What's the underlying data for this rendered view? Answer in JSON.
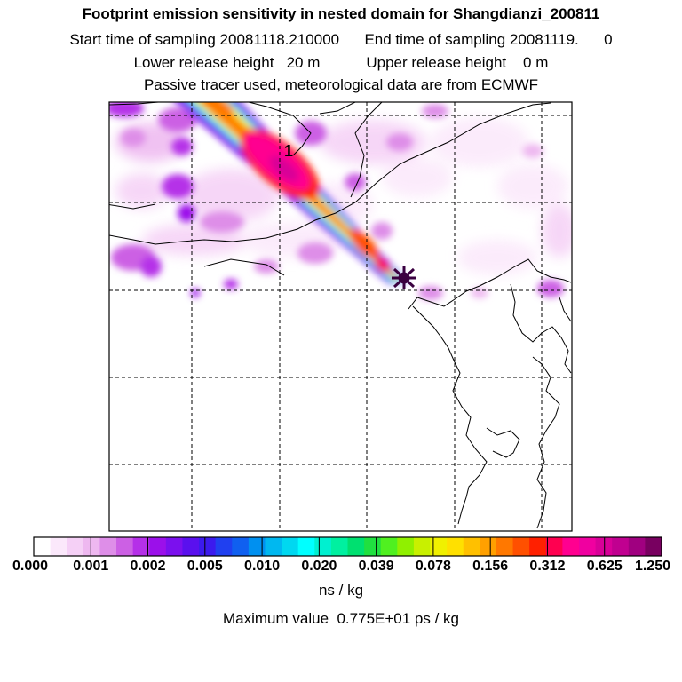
{
  "header": {
    "title": "Footprint emission sensitivity in nested domain for Shangdianzi_200811",
    "line2": "Start time of sampling 20081118.210000      End time of sampling 20081119.      0",
    "line3": "Lower release height   20 m           Upper release height    0 m",
    "line4": "Passive tracer used, meteorological data are from ECMWF"
  },
  "map": {
    "receptor_label": "1",
    "receptor_marker": "star-icon"
  },
  "colorbar": {
    "labels": [
      "0.000",
      "0.001",
      "0.002",
      "0.005",
      "0.010",
      "0.020",
      "0.039",
      "0.078",
      "0.156",
      "0.312",
      "0.625",
      "1.250"
    ],
    "colors": [
      "#ffffff",
      "#fbe8fb",
      "#f5d0f6",
      "#eeb8f0",
      "#de8ee8",
      "#cc60e4",
      "#b530e8",
      "#9b10ea",
      "#7b10ee",
      "#5a10ee",
      "#3c1aee",
      "#2040f0",
      "#1060f0",
      "#0090f0",
      "#00b8f0",
      "#00d8f0",
      "#00ffff",
      "#00f0d0",
      "#00f0a0",
      "#00e070",
      "#20e040",
      "#50f020",
      "#90f000",
      "#c8f000",
      "#f0f000",
      "#ffe000",
      "#ffc000",
      "#ffa000",
      "#ff7800",
      "#ff5000",
      "#ff2000",
      "#ff0050",
      "#ff0090",
      "#f000a0",
      "#d80098",
      "#c00090",
      "#a00080",
      "#780060"
    ],
    "units": "ns / kg"
  },
  "footer": {
    "max_value": "Maximum value  0.775E+01 ps / kg"
  }
}
